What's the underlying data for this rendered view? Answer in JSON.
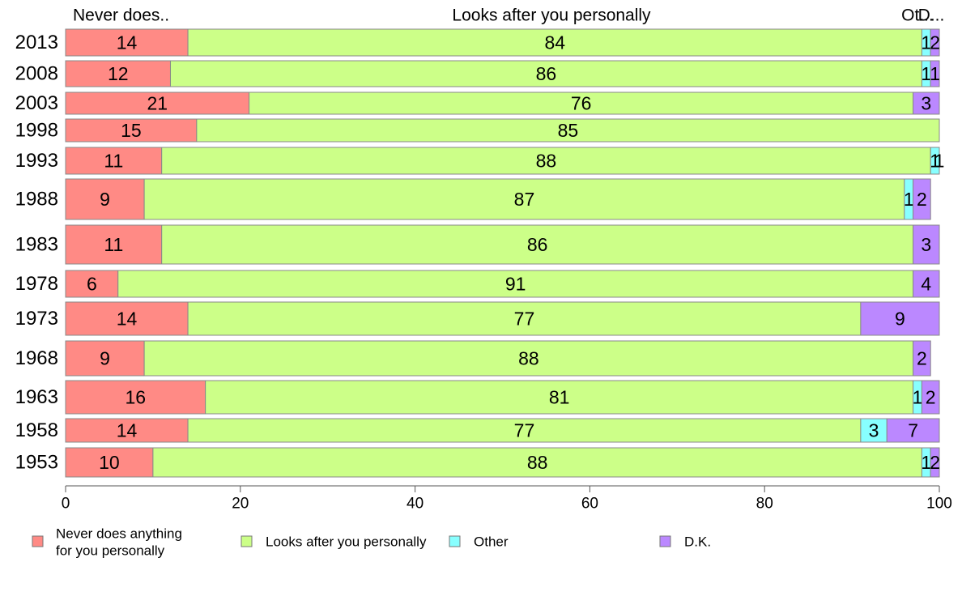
{
  "chart_data": {
    "type": "bar",
    "orientation": "horizontal",
    "stacked": true,
    "xlim": [
      0,
      100
    ],
    "x_ticks": [
      0,
      20,
      40,
      60,
      80,
      100
    ],
    "legend_position": "bottom",
    "grid": false,
    "top_labels": [
      "Never does..",
      "Looks after you personally",
      "Ot...",
      "D..."
    ],
    "categories": [
      "2013",
      "2008",
      "2003",
      "1998",
      "1993",
      "1988",
      "1983",
      "1978",
      "1973",
      "1968",
      "1963",
      "1958",
      "1953"
    ],
    "series": [
      {
        "name": "Never does anything for you personally",
        "legend_lines": [
          "Never does anything",
          "for you personally"
        ],
        "color": "#ff8a85",
        "values": [
          14,
          12,
          21,
          15,
          11,
          9,
          11,
          6,
          14,
          9,
          16,
          14,
          10
        ],
        "labels": [
          "14",
          "12",
          "21",
          "15",
          "11",
          "9",
          "11",
          "6",
          "14",
          "9",
          "16",
          "14",
          "10"
        ]
      },
      {
        "name": "Looks after you personally",
        "legend_lines": [
          "Looks after you personally"
        ],
        "color": "#ccff88",
        "values": [
          84,
          86,
          76,
          85,
          88,
          87,
          86,
          91,
          77,
          88,
          81,
          77,
          88
        ],
        "labels": [
          "84",
          "86",
          "76",
          "85",
          "88",
          "87",
          "86",
          "91",
          "77",
          "88",
          "81",
          "77",
          "88"
        ]
      },
      {
        "name": "Other",
        "legend_lines": [
          "Other"
        ],
        "color": "#88ffff",
        "values": [
          1,
          1,
          0,
          0,
          1,
          1,
          0,
          0,
          0,
          0,
          1,
          3,
          1
        ],
        "labels": [
          "1",
          "1",
          "",
          "",
          "1",
          "1",
          "",
          "",
          "",
          "",
          "1",
          "3",
          "1"
        ]
      },
      {
        "name": "D.K.",
        "legend_lines": [
          "D.K."
        ],
        "color": "#bb88ff",
        "values": [
          2,
          1,
          3,
          0,
          1,
          2,
          3,
          4,
          9,
          2,
          2,
          7,
          2
        ],
        "labels": [
          "2",
          "1",
          "3",
          "",
          "1",
          "2",
          "3",
          "4",
          "9",
          "2",
          "2",
          "7",
          "2"
        ]
      }
    ]
  }
}
